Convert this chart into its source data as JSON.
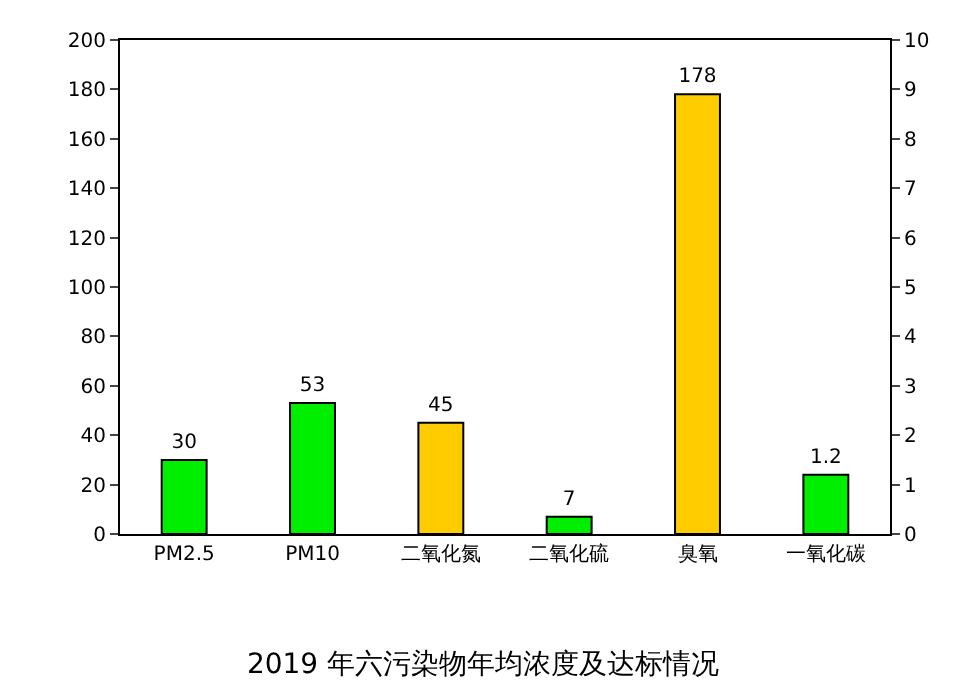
{
  "chart_data": {
    "type": "bar",
    "title": "2019 年六污染物年均浓度及达标情况",
    "categories": [
      "PM2.5",
      "PM10",
      "二氧化氮",
      "二氧化硫",
      "臭氧",
      "一氧化碳"
    ],
    "series": [
      {
        "colors": [
          "#00ee00",
          "#00ee00",
          "#ffcc00",
          "#00ee00",
          "#ffcc00",
          null
        ],
        "values": [
          30,
          53,
          45,
          7,
          178,
          null
        ],
        "axis": "y"
      },
      {
        "colors": [
          null,
          null,
          null,
          null,
          null,
          "#00ee00"
        ],
        "values": [
          null,
          null,
          null,
          null,
          null,
          1.2
        ],
        "axis": "y2"
      }
    ],
    "ylim": [
      0,
      200
    ],
    "yticks": [
      0,
      20,
      40,
      60,
      80,
      100,
      120,
      140,
      160,
      180,
      200
    ],
    "y2lim": [
      0,
      10
    ],
    "y2ticks": [
      0,
      1,
      2,
      3,
      4,
      5,
      6,
      7,
      8,
      9,
      10
    ],
    "data_labels": true
  }
}
